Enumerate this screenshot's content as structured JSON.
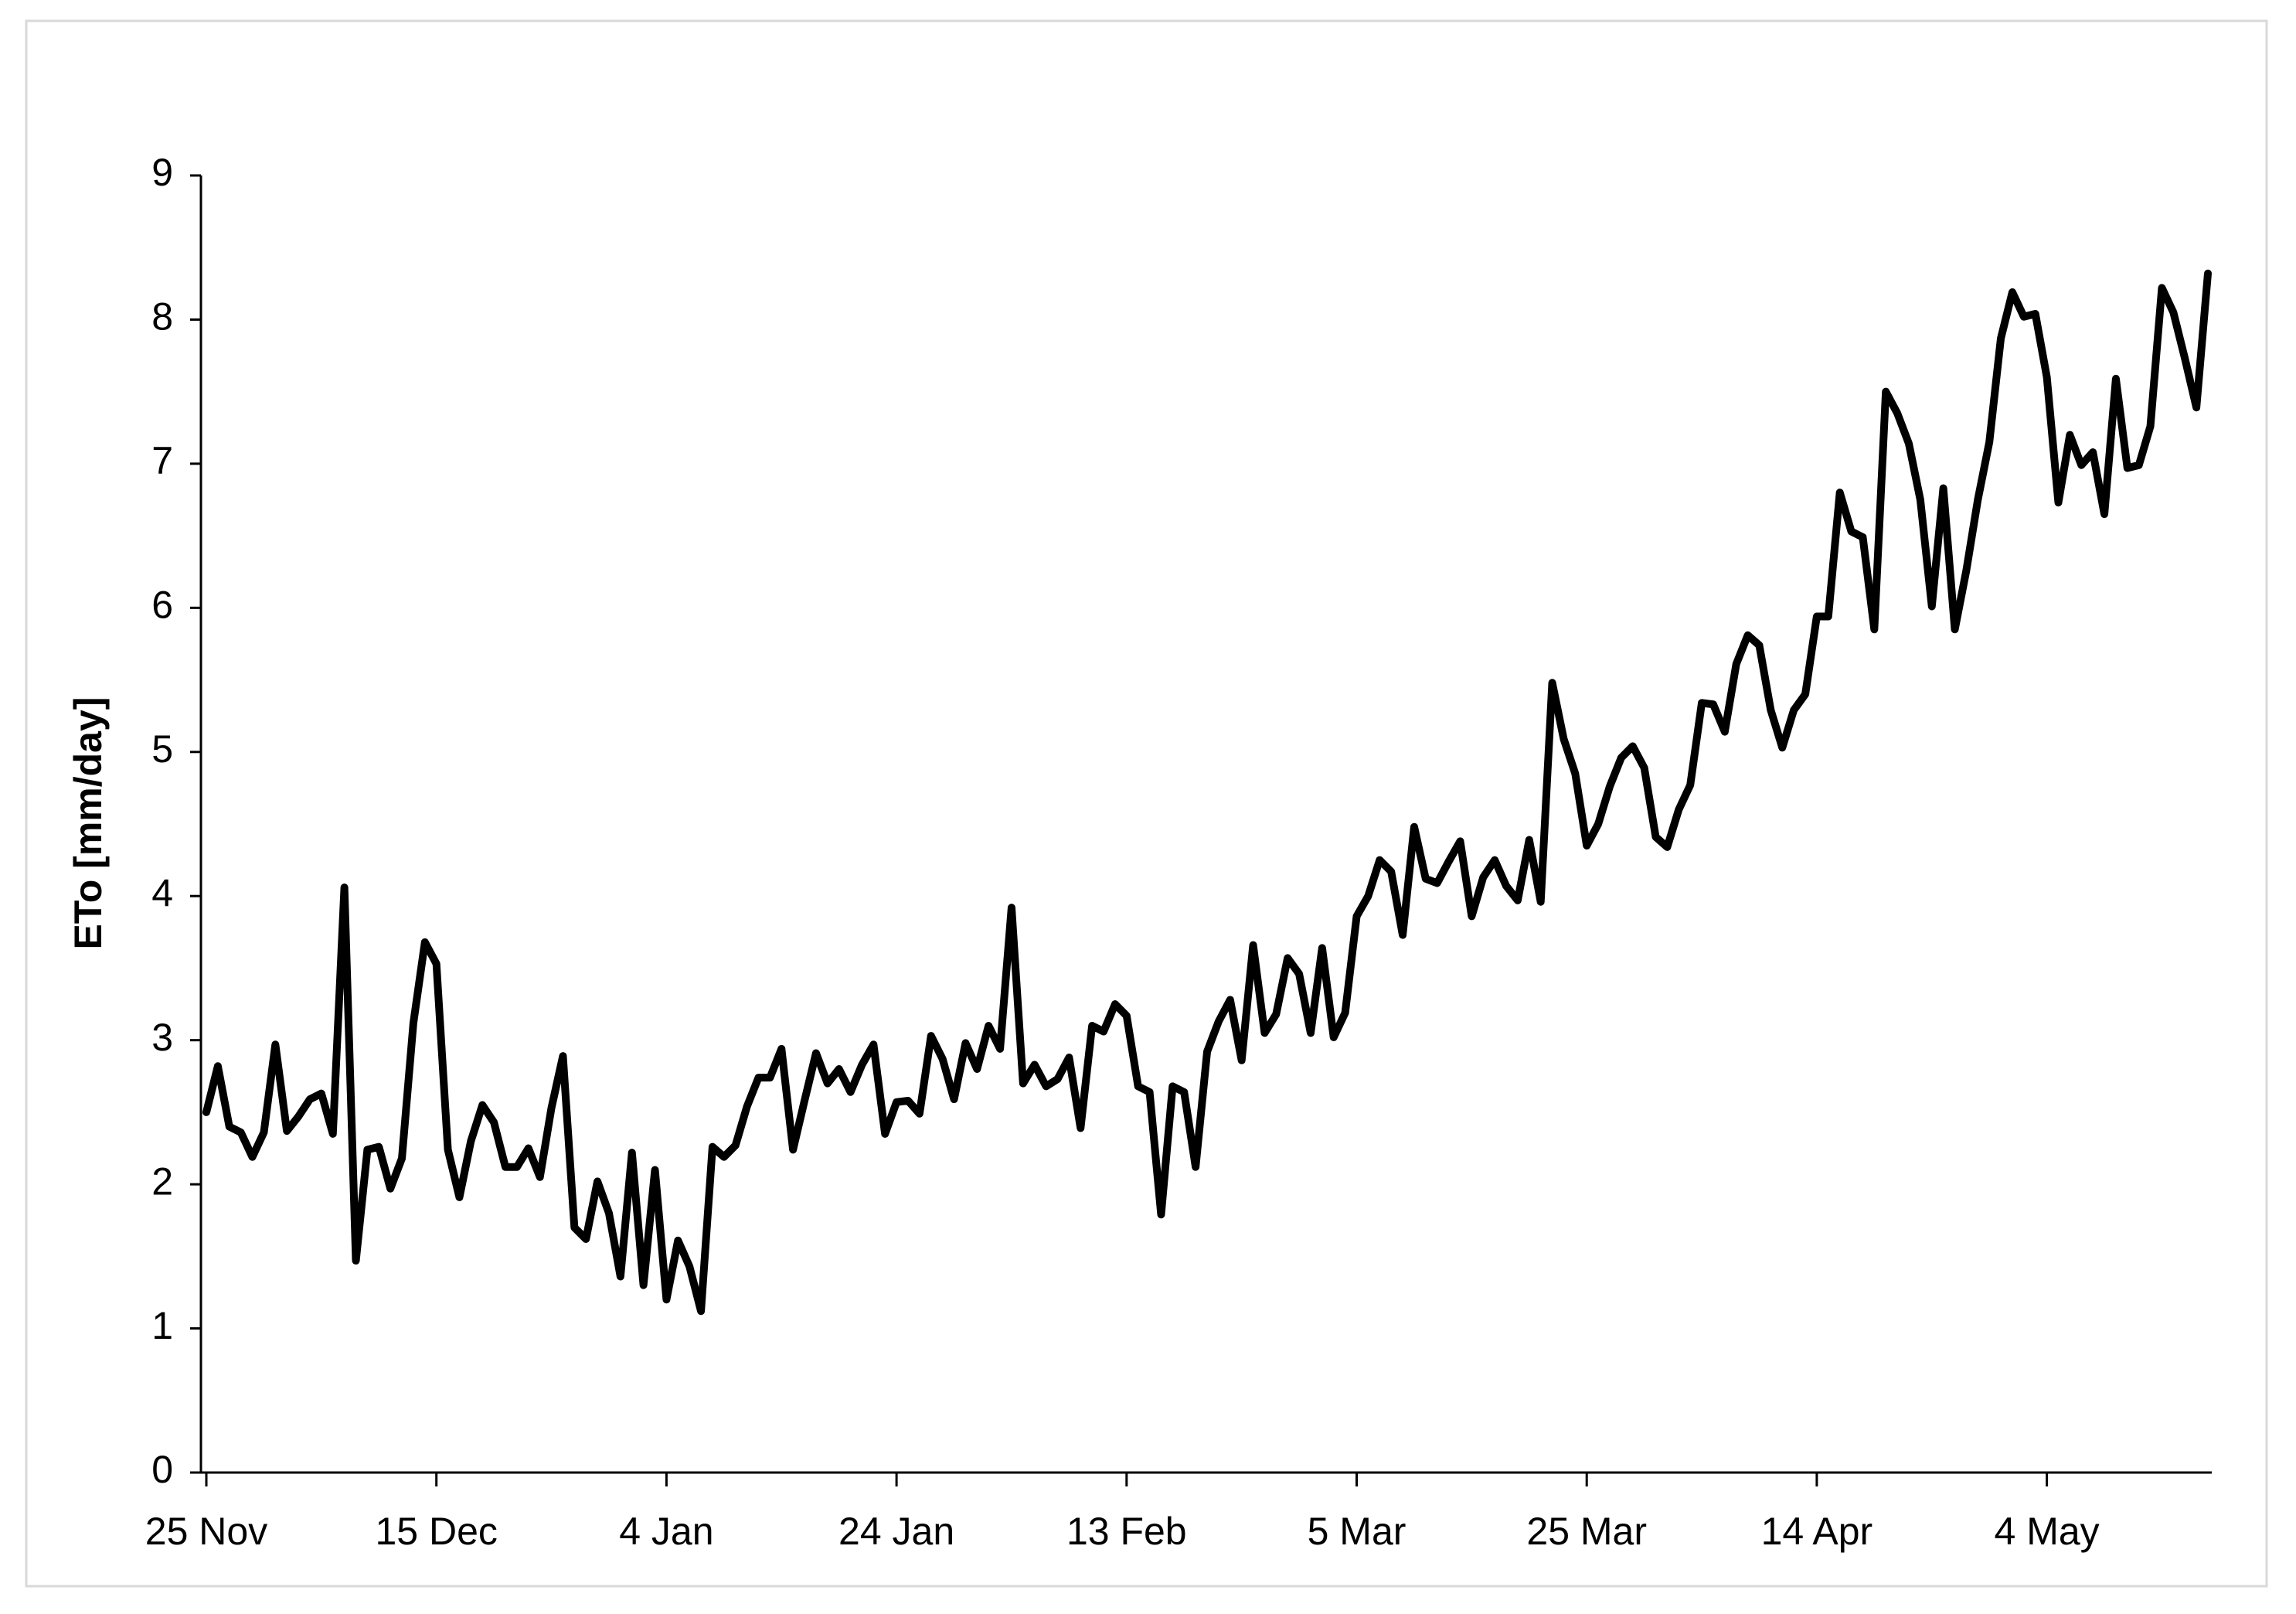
{
  "chart_data": {
    "type": "line",
    "y_label": "ETo [mm/day]",
    "categories": [
      "25 Nov",
      null,
      null,
      null,
      null,
      null,
      null,
      null,
      null,
      null,
      null,
      null,
      null,
      null,
      null,
      null,
      null,
      null,
      null,
      null,
      "15 Dec",
      null,
      null,
      null,
      null,
      null,
      null,
      null,
      null,
      null,
      null,
      null,
      null,
      null,
      null,
      null,
      null,
      null,
      null,
      null,
      "4 Jan",
      null,
      null,
      null,
      null,
      null,
      null,
      null,
      null,
      null,
      null,
      null,
      null,
      null,
      null,
      null,
      null,
      null,
      null,
      null,
      "24 Jan",
      null,
      null,
      null,
      null,
      null,
      null,
      null,
      null,
      null,
      null,
      null,
      null,
      null,
      null,
      null,
      null,
      null,
      null,
      null,
      "13 Feb",
      null,
      null,
      null,
      null,
      null,
      null,
      null,
      null,
      null,
      null,
      null,
      null,
      null,
      null,
      null,
      null,
      null,
      null,
      null,
      "5 Mar",
      null,
      null,
      null,
      null,
      null,
      null,
      null,
      null,
      null,
      null,
      null,
      null,
      null,
      null,
      null,
      null,
      null,
      null,
      null,
      "25 Mar",
      null,
      null,
      null,
      null,
      null,
      null,
      null,
      null,
      null,
      null,
      null,
      null,
      null,
      null,
      null,
      null,
      null,
      null,
      null,
      "14 Apr",
      null,
      null,
      null,
      null,
      null,
      null,
      null,
      null,
      null,
      null,
      null,
      null,
      null,
      null,
      null,
      null,
      null,
      null,
      null,
      "4 May",
      null,
      null,
      null,
      null,
      null,
      null,
      null,
      null,
      null,
      null,
      null,
      null,
      null,
      null
    ],
    "values": [
      2.5,
      2.82,
      2.4,
      2.36,
      2.19,
      2.36,
      2.97,
      2.37,
      2.47,
      2.59,
      2.63,
      2.35,
      4.06,
      1.47,
      2.24,
      2.26,
      1.97,
      2.18,
      3.12,
      3.68,
      3.53,
      2.24,
      1.91,
      2.3,
      2.55,
      2.43,
      2.12,
      2.12,
      2.25,
      2.05,
      2.53,
      2.89,
      1.7,
      1.62,
      2.02,
      1.8,
      1.36,
      2.22,
      1.3,
      2.1,
      1.2,
      1.61,
      1.43,
      1.12,
      2.26,
      2.19,
      2.27,
      2.54,
      2.74,
      2.74,
      2.94,
      2.24,
      2.58,
      2.91,
      2.7,
      2.8,
      2.64,
      2.83,
      2.97,
      2.35,
      2.57,
      2.58,
      2.49,
      3.03,
      2.87,
      2.59,
      2.98,
      2.8,
      3.1,
      2.94,
      3.92,
      2.7,
      2.83,
      2.68,
      2.73,
      2.88,
      2.39,
      3.1,
      3.06,
      3.25,
      3.17,
      2.68,
      2.64,
      1.79,
      2.68,
      2.64,
      2.12,
      2.92,
      3.13,
      3.28,
      2.86,
      3.66,
      3.05,
      3.18,
      3.57,
      3.46,
      3.05,
      3.64,
      3.02,
      3.19,
      3.86,
      4.0,
      4.25,
      4.17,
      3.73,
      4.48,
      4.12,
      4.09,
      4.24,
      4.38,
      3.86,
      4.13,
      4.25,
      4.07,
      3.97,
      4.39,
      3.96,
      5.48,
      5.09,
      4.85,
      4.35,
      4.5,
      4.76,
      4.96,
      5.04,
      4.89,
      4.41,
      4.34,
      4.6,
      4.77,
      5.34,
      5.33,
      5.14,
      5.61,
      5.81,
      5.74,
      5.29,
      5.03,
      5.29,
      5.4,
      5.94,
      5.94,
      6.8,
      6.53,
      6.49,
      5.85,
      7.5,
      7.35,
      7.14,
      6.75,
      6.01,
      6.83,
      5.85,
      6.26,
      6.75,
      7.15,
      7.87,
      8.19,
      8.02,
      8.04,
      7.6,
      6.73,
      7.2,
      6.99,
      7.08,
      6.65,
      7.59,
      6.97,
      6.99,
      7.26,
      8.22,
      8.05,
      7.73,
      7.39,
      8.32
    ],
    "color": "#000000",
    "ylim": [
      0,
      9
    ],
    "yticks": [
      0,
      1,
      2,
      3,
      4,
      5,
      6,
      7,
      8,
      9
    ],
    "grid": false
  }
}
